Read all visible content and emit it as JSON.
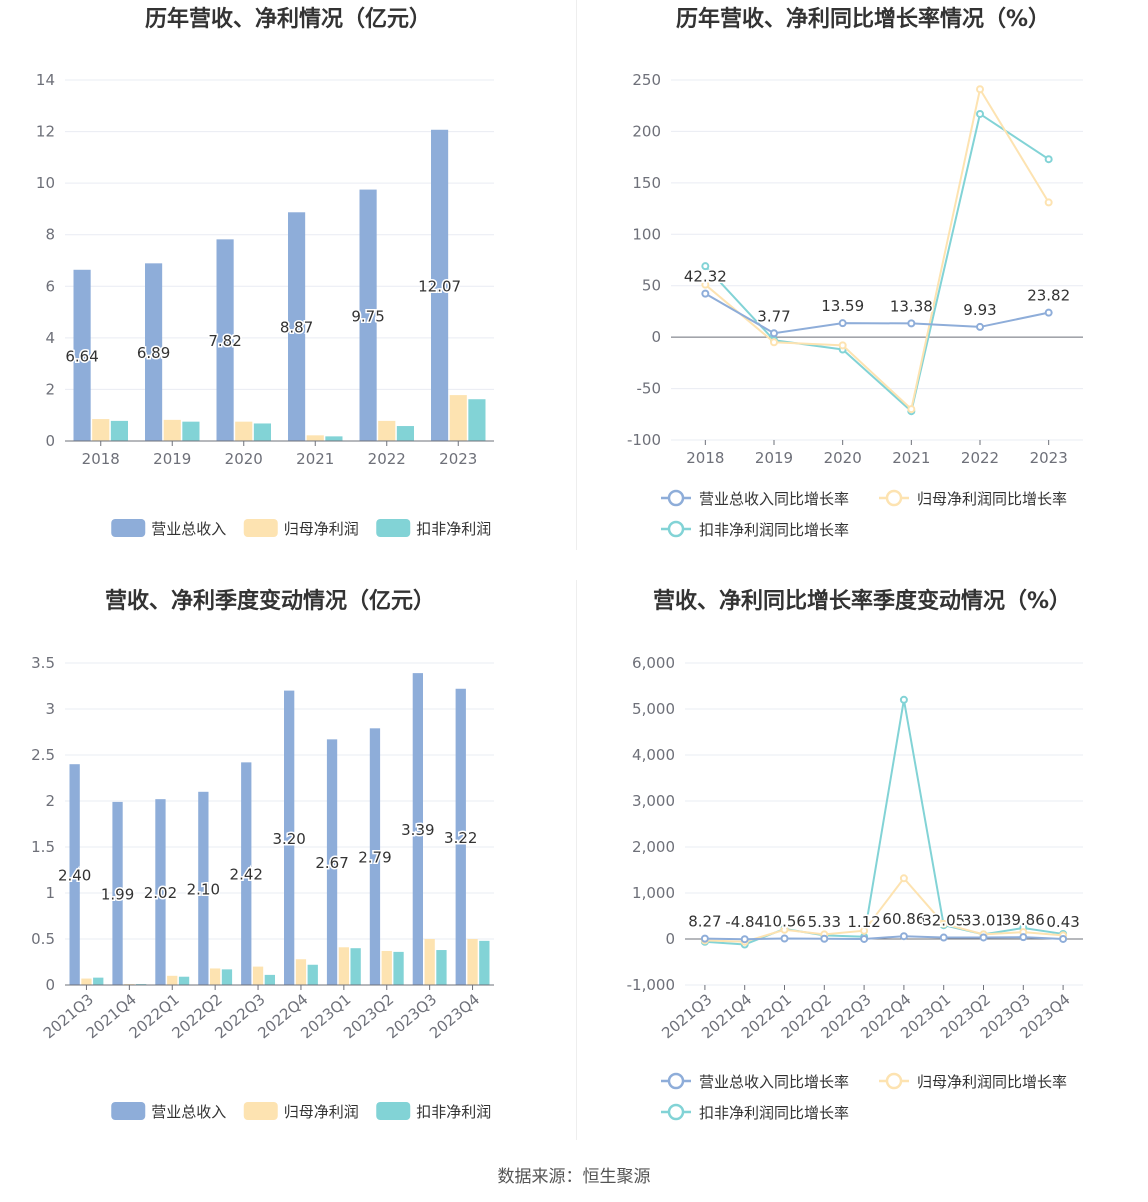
{
  "colors": {
    "revenue": "#8eadd9",
    "net_profit": "#fde3b1",
    "deducted_profit": "#82d3d6"
  },
  "source_text": "数据来源：恒生聚源",
  "chart_data": [
    {
      "id": "annual-bar",
      "type": "bar",
      "title": "历年营收、净利情况（亿元）",
      "categories": [
        "2018",
        "2019",
        "2020",
        "2021",
        "2022",
        "2023"
      ],
      "ylim": [
        0,
        14
      ],
      "yticks": [
        0,
        2,
        4,
        6,
        8,
        10,
        12,
        14
      ],
      "grid": true,
      "legend_position": "bottom",
      "series": [
        {
          "name": "营业总收入",
          "values": [
            6.64,
            6.89,
            7.82,
            8.87,
            9.75,
            12.07
          ],
          "labels": [
            "6.64",
            "6.89",
            "7.82",
            "8.87",
            "9.75",
            "12.07"
          ]
        },
        {
          "name": "归母净利润",
          "values": [
            0.85,
            0.82,
            0.75,
            0.22,
            0.78,
            1.78
          ]
        },
        {
          "name": "扣非净利润",
          "values": [
            0.78,
            0.75,
            0.68,
            0.18,
            0.58,
            1.62
          ]
        }
      ]
    },
    {
      "id": "annual-line",
      "type": "line",
      "title": "历年营收、净利同比增长率情况（%）",
      "categories": [
        "2018",
        "2019",
        "2020",
        "2021",
        "2022",
        "2023"
      ],
      "ylim": [
        -100,
        250
      ],
      "yticks": [
        -100,
        -50,
        0,
        50,
        100,
        150,
        200,
        250
      ],
      "grid": true,
      "legend_position": "bottom",
      "series": [
        {
          "name": "营业总收入同比增长率",
          "values": [
            42.32,
            3.77,
            13.59,
            13.38,
            9.93,
            23.82
          ],
          "labels": [
            "42.32",
            "3.77",
            "13.59",
            "13.38",
            "9.93",
            "23.82"
          ]
        },
        {
          "name": "归母净利润同比增长率",
          "values": [
            51,
            -5,
            -8,
            -70,
            241,
            131
          ]
        },
        {
          "name": "扣非净利润同比增长率",
          "values": [
            69,
            -3,
            -12,
            -72,
            217,
            173
          ]
        }
      ]
    },
    {
      "id": "quarter-bar",
      "type": "bar",
      "title": "营收、净利季度变动情况（亿元）",
      "categories": [
        "2021Q3",
        "2021Q4",
        "2022Q1",
        "2022Q2",
        "2022Q3",
        "2022Q4",
        "2023Q1",
        "2023Q2",
        "2023Q3",
        "2023Q4"
      ],
      "ylim": [
        0,
        3.5
      ],
      "yticks": [
        0,
        0.5,
        1,
        1.5,
        2,
        2.5,
        3,
        3.5
      ],
      "grid": true,
      "legend_position": "bottom",
      "series": [
        {
          "name": "营业总收入",
          "values": [
            2.4,
            1.99,
            2.02,
            2.1,
            2.42,
            3.2,
            2.67,
            2.79,
            3.39,
            3.22
          ],
          "labels": [
            "2.40",
            "1.99",
            "2.02",
            "2.10",
            "2.42",
            "3.20",
            "2.67",
            "2.79",
            "3.39",
            "3.22"
          ]
        },
        {
          "name": "归母净利润",
          "values": [
            0.07,
            0.01,
            0.1,
            0.18,
            0.2,
            0.28,
            0.41,
            0.37,
            0.5,
            0.5
          ]
        },
        {
          "name": "扣非净利润",
          "values": [
            0.08,
            0.01,
            0.09,
            0.17,
            0.11,
            0.22,
            0.4,
            0.36,
            0.38,
            0.48
          ]
        }
      ]
    },
    {
      "id": "quarter-line",
      "type": "line",
      "title": "营收、净利同比增长率季度变动情况（%）",
      "categories": [
        "2021Q3",
        "2021Q4",
        "2022Q1",
        "2022Q2",
        "2022Q3",
        "2022Q4",
        "2023Q1",
        "2023Q2",
        "2023Q3",
        "2023Q4"
      ],
      "ylim": [
        -1000,
        6000
      ],
      "yticks": [
        -1000,
        0,
        1000,
        2000,
        3000,
        4000,
        5000,
        6000
      ],
      "ytick_labels": [
        "-1,000",
        "0",
        "1,000",
        "2,000",
        "3,000",
        "4,000",
        "5,000",
        "6,000"
      ],
      "grid": true,
      "legend_position": "bottom",
      "series": [
        {
          "name": "营业总收入同比增长率",
          "values": [
            8.27,
            -4.84,
            10.56,
            5.33,
            1.12,
            60.86,
            32.05,
            33.01,
            39.86,
            0.43
          ],
          "labels": [
            "8.27",
            "-4.84",
            "10.56",
            "5.33",
            "1.12",
            "60.86",
            "32.05",
            "33.01",
            "39.86",
            "0.43"
          ]
        },
        {
          "name": "归母净利润同比增长率",
          "values": [
            -30,
            -60,
            200,
            100,
            180,
            1320,
            330,
            100,
            150,
            80
          ]
        },
        {
          "name": "扣非净利润同比增长率",
          "values": [
            -60,
            -120,
            220,
            80,
            50,
            5200,
            300,
            100,
            240,
            110
          ]
        }
      ]
    }
  ]
}
